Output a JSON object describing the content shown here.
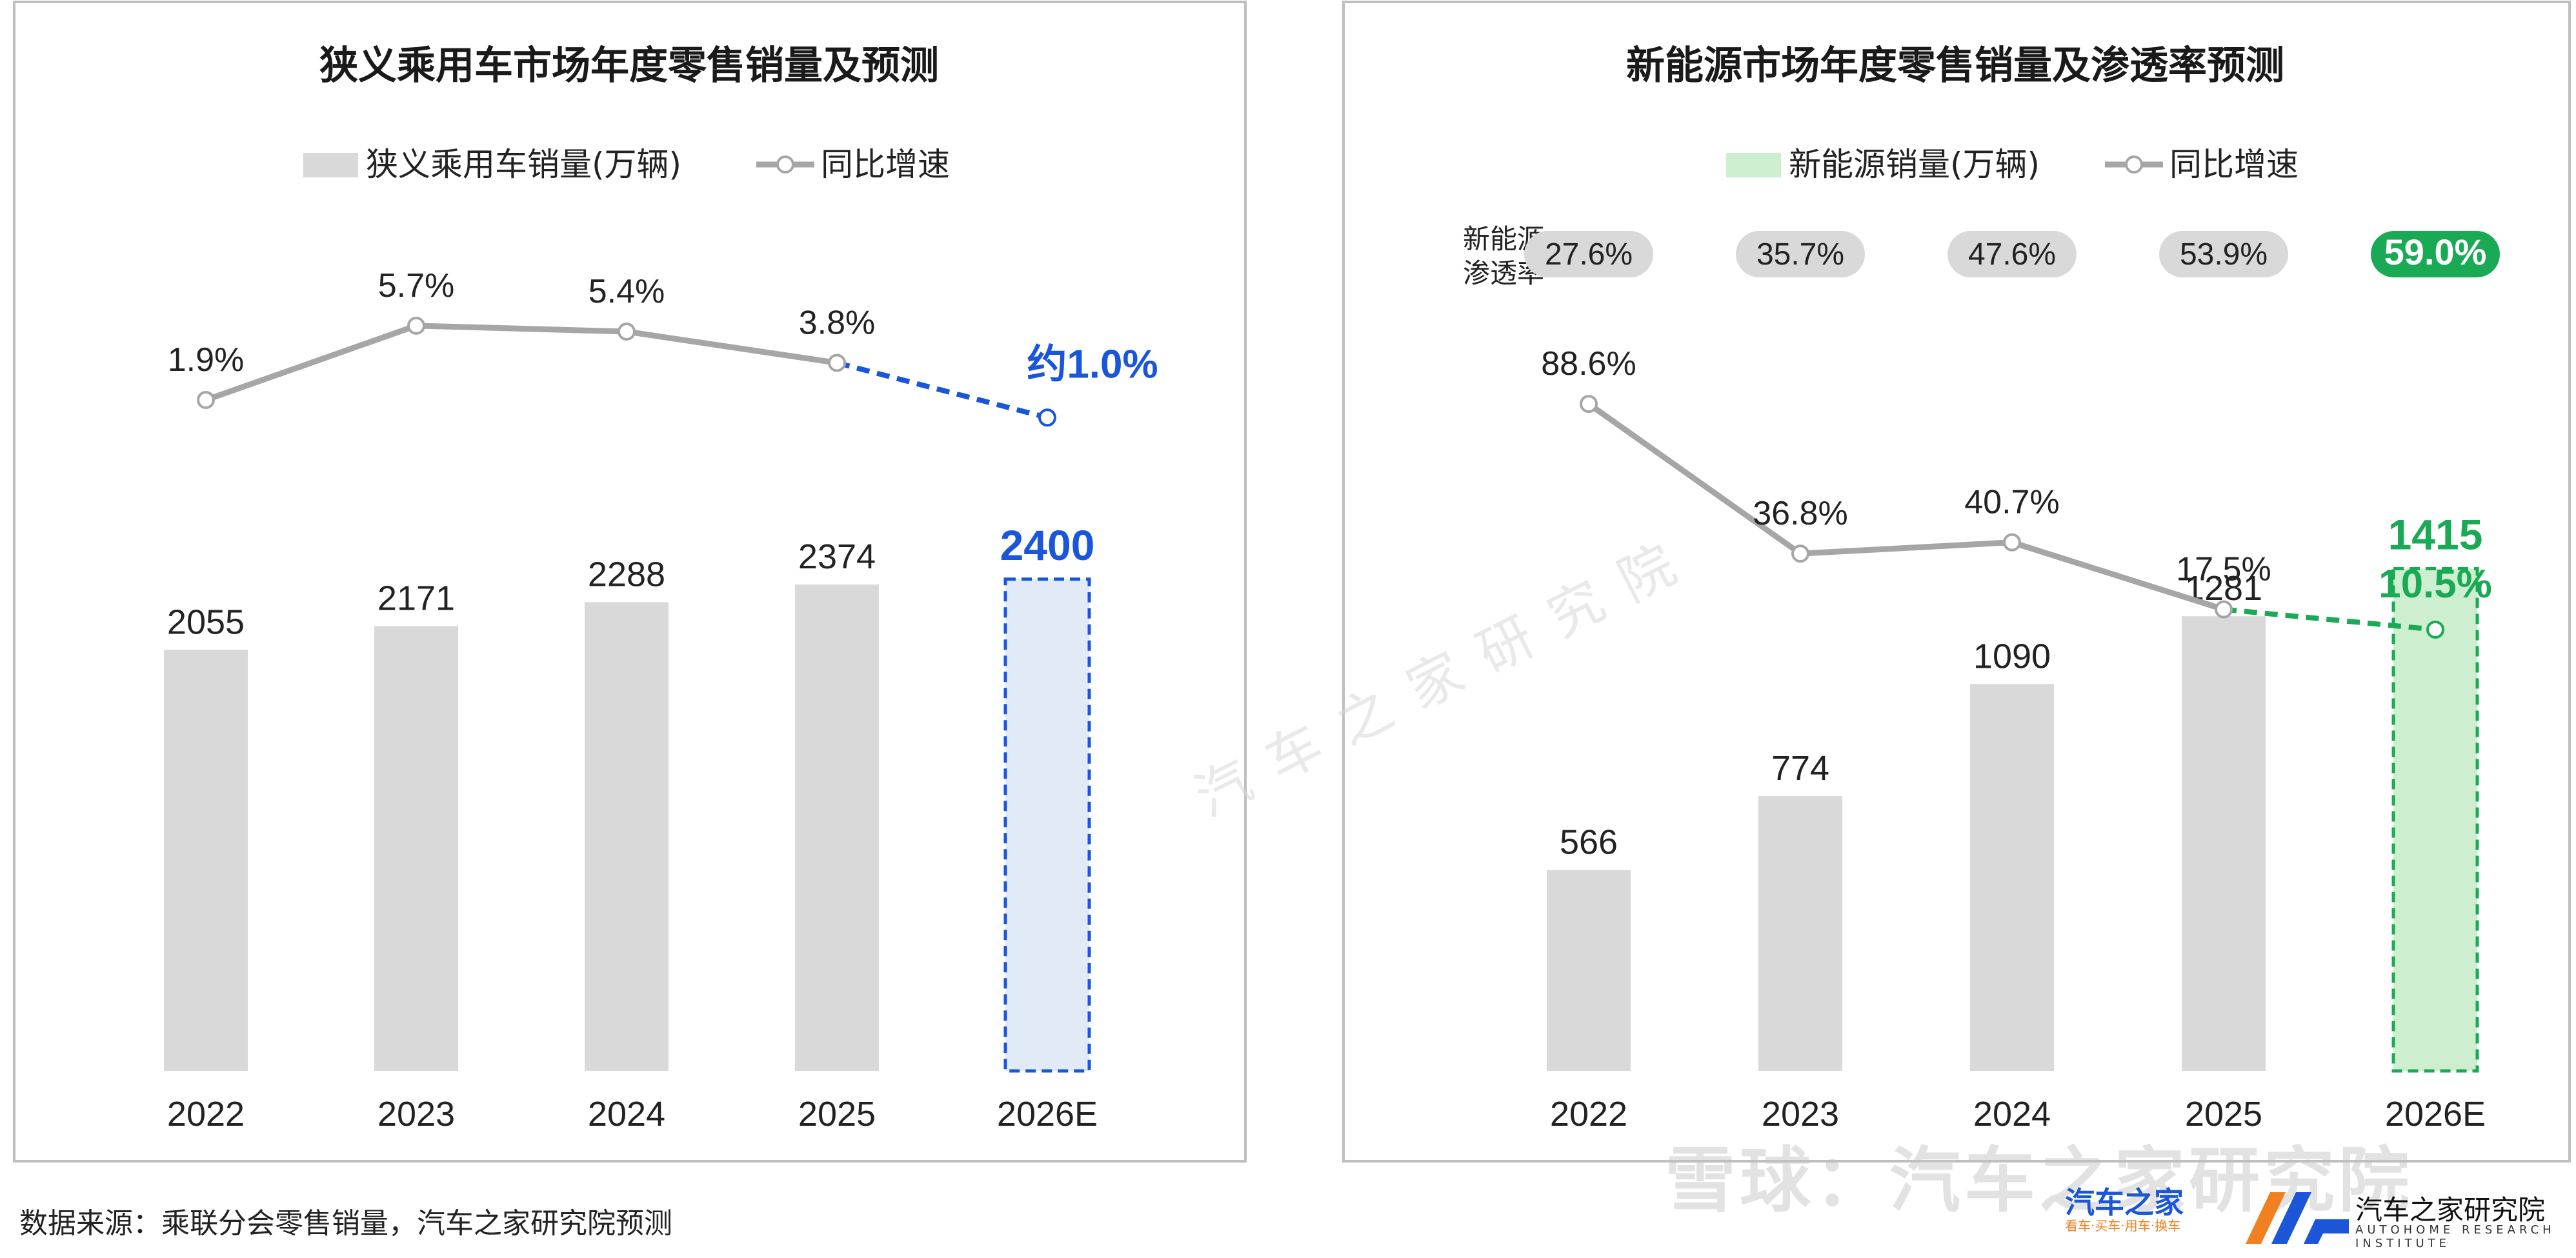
{
  "chart_data": [
    {
      "type": "bar",
      "title": "狭义乘用车市场年度零售销量及预测",
      "categories": [
        "2022",
        "2023",
        "2024",
        "2025",
        "2026E"
      ],
      "series": [
        {
          "name": "狭义乘用车销量(万辆)",
          "type": "bar",
          "values": [
            2055,
            2171,
            2288,
            2374,
            2400
          ],
          "value_labels": [
            "2055",
            "2171",
            "2288",
            "2374",
            "2400"
          ]
        },
        {
          "name": "同比增速",
          "type": "line",
          "values": [
            1.9,
            5.7,
            5.4,
            3.8,
            1.0
          ],
          "value_labels": [
            "1.9%",
            "5.7%",
            "5.4%",
            "3.8%",
            "约1.0%"
          ]
        }
      ],
      "forecast_index": 4,
      "accent": "#1a56db",
      "fill_forecast": "#e1ebf7",
      "bar_color": "#d9d9d9",
      "line_color": "#a6a6a6",
      "legend_position": "top-center"
    },
    {
      "type": "bar",
      "title": "新能源市场年度零售销量及渗透率预测",
      "categories": [
        "2022",
        "2023",
        "2024",
        "2025",
        "2026E"
      ],
      "series": [
        {
          "name": "新能源销量(万辆)",
          "type": "bar",
          "values": [
            566,
            774,
            1090,
            1281,
            1415
          ],
          "value_labels": [
            "566",
            "774",
            "1090",
            "1281",
            "1415"
          ]
        },
        {
          "name": "同比增速",
          "type": "line",
          "values": [
            88.6,
            36.8,
            40.7,
            17.5,
            10.5
          ],
          "value_labels": [
            "88.6%",
            "36.8%",
            "40.7%",
            "17.5%",
            "10.5%"
          ]
        }
      ],
      "penetration": {
        "label_line1": "新能源",
        "label_line2": "渗透率",
        "values": [
          "27.6%",
          "35.7%",
          "47.6%",
          "53.9%",
          "59.0%"
        ]
      },
      "forecast_index": 4,
      "accent": "#1aaa55",
      "fill_forecast": "#cdeecf",
      "bar_color": "#d9d9d9",
      "line_color": "#a6a6a6",
      "legend_position": "top-center"
    }
  ],
  "footer": {
    "source": "数据来源：乘联分会零售销量，汽车之家研究院预测",
    "watermark_center": "汽 车 之 家 研 究 院",
    "watermark_xq": "雪球：汽车之家研究院",
    "logo_autohome": "汽车之家",
    "logo_autohome_sub": "看车·买车·用车·换车",
    "logo_research": "汽车之家研究院",
    "logo_research_sub": "AUTOHOME RESEARCH INSTITUTE"
  }
}
